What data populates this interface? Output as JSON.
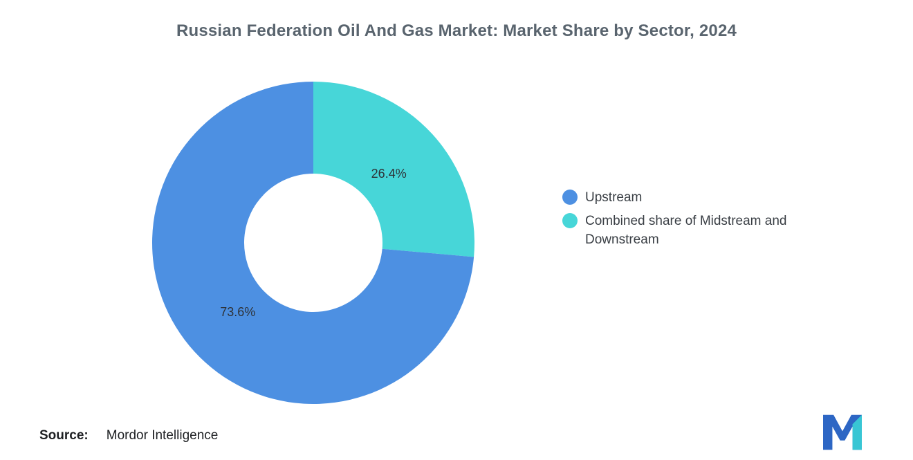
{
  "chart_data": {
    "type": "pie",
    "subtype": "donut",
    "title": "Russian Federation Oil And Gas Market: Market Share by Sector, 2024",
    "slices": [
      {
        "name": "Upstream",
        "value": 73.6,
        "label": "73.6%",
        "color": "#4D90E2"
      },
      {
        "name": "Combined share of Midstream and Downstream",
        "value": 26.4,
        "label": "26.4%",
        "color": "#47D6D8"
      }
    ],
    "legend_position": "right",
    "start_angle_deg": 0,
    "clockwise": true,
    "inner_radius_ratio": 0.43,
    "grid": false
  },
  "source": {
    "prefix": "Source:",
    "text": "Mordor Intelligence"
  },
  "logo": {
    "alt": "Mordor Intelligence logo",
    "blue": "#2D66C4",
    "teal": "#38C6D4"
  }
}
